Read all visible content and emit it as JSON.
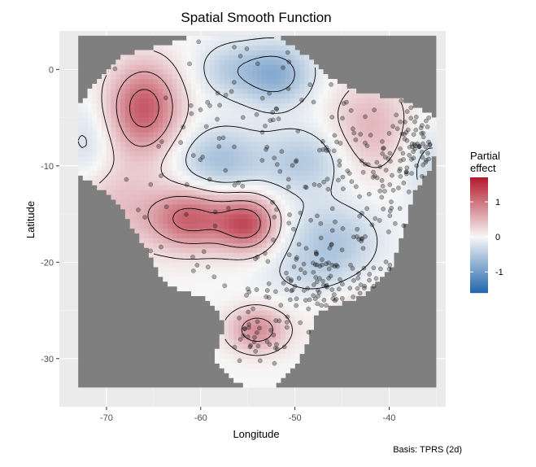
{
  "chart_data": {
    "type": "heatmap",
    "title": "Spatial Smooth Function",
    "xlabel": "Longitude",
    "ylabel": "Latitude",
    "xlim": [
      -75,
      -34
    ],
    "ylim": [
      -35,
      4
    ],
    "x_ticks": [
      -70,
      -60,
      -50,
      -40
    ],
    "x_tick_labels": [
      "-70",
      "-60",
      "-50",
      "-40"
    ],
    "y_ticks": [
      0,
      -10,
      -20,
      -30
    ],
    "y_tick_labels": [
      "0",
      "-10",
      "-20",
      "-30"
    ],
    "grid": true,
    "legend": {
      "title_line1": "Partial",
      "title_line2": "effect",
      "placement": "right",
      "range": [
        -1.6,
        1.7
      ],
      "ticks": [
        1,
        0,
        -1
      ],
      "tick_labels": [
        "1",
        "0",
        "-1"
      ],
      "colors": [
        "#2166ac",
        "#f7f7f7",
        "#b2182b"
      ]
    },
    "caption": "Basis: TPRS (2d)",
    "domain_background": [
      -73,
      -35,
      -33,
      3.5
    ],
    "domain_color": "#7f7f7f",
    "field_range": [
      -73,
      -35,
      -33,
      3.5
    ],
    "field_bumps": [
      {
        "x": -66,
        "y": -4,
        "amp": 1.2,
        "sx": 2.6,
        "sy": 3.2
      },
      {
        "x": -61,
        "y": -15.5,
        "amp": 1.1,
        "sx": 3.0,
        "sy": 2.2
      },
      {
        "x": -55,
        "y": -16,
        "amp": 1.2,
        "sx": 2.2,
        "sy": 2.0
      },
      {
        "x": -69,
        "y": -14,
        "amp": 0.4,
        "sx": 4.0,
        "sy": 3.5
      },
      {
        "x": -52,
        "y": -0.5,
        "amp": -0.8,
        "sx": 2.6,
        "sy": 2.2
      },
      {
        "x": -57,
        "y": 0,
        "amp": -0.4,
        "sx": 2.4,
        "sy": 2.0
      },
      {
        "x": -58,
        "y": -9.5,
        "amp": -0.6,
        "sx": 3.2,
        "sy": 2.4
      },
      {
        "x": -49,
        "y": -9.5,
        "amp": -0.5,
        "sx": 3.2,
        "sy": 2.4
      },
      {
        "x": -46,
        "y": -17.5,
        "amp": -0.5,
        "sx": 3.4,
        "sy": 2.6
      },
      {
        "x": -42,
        "y": -6,
        "amp": 0.5,
        "sx": 3.0,
        "sy": 3.5
      },
      {
        "x": -54,
        "y": -27,
        "amp": 0.8,
        "sx": 2.2,
        "sy": 1.6
      },
      {
        "x": -42,
        "y": -27,
        "amp": 0.5,
        "sx": 3.0,
        "sy": 3.0
      },
      {
        "x": -72,
        "y": -8,
        "amp": -0.3,
        "sx": 2.0,
        "sy": 3.0
      },
      {
        "x": -36,
        "y": -10,
        "amp": -0.3,
        "sx": 2.0,
        "sy": 3.0
      },
      {
        "x": -48,
        "y": -21,
        "amp": -0.25,
        "sx": 4.0,
        "sy": 2.0
      }
    ],
    "contour_levels": [
      -1.0,
      -0.6,
      -0.2,
      0.2,
      0.6,
      1.0
    ],
    "points": {
      "count": 420,
      "fill": "#000000",
      "fill_opacity": 0.3,
      "clusters": [
        {
          "x": -42,
          "y": -14,
          "sx": 5,
          "sy": 7,
          "n": 140
        },
        {
          "x": -47,
          "y": -22,
          "sx": 4,
          "sy": 2,
          "n": 90
        },
        {
          "x": -37.5,
          "y": -8,
          "sx": 1.5,
          "sy": 2.5,
          "n": 60
        },
        {
          "x": -54,
          "y": -28,
          "sx": 2,
          "sy": 1.5,
          "n": 35
        },
        {
          "x": -52,
          "y": -6,
          "sx": 6,
          "sy": 6,
          "n": 60
        },
        {
          "x": -60,
          "y": -12,
          "sx": 6,
          "sy": 6,
          "n": 35
        }
      ]
    }
  }
}
